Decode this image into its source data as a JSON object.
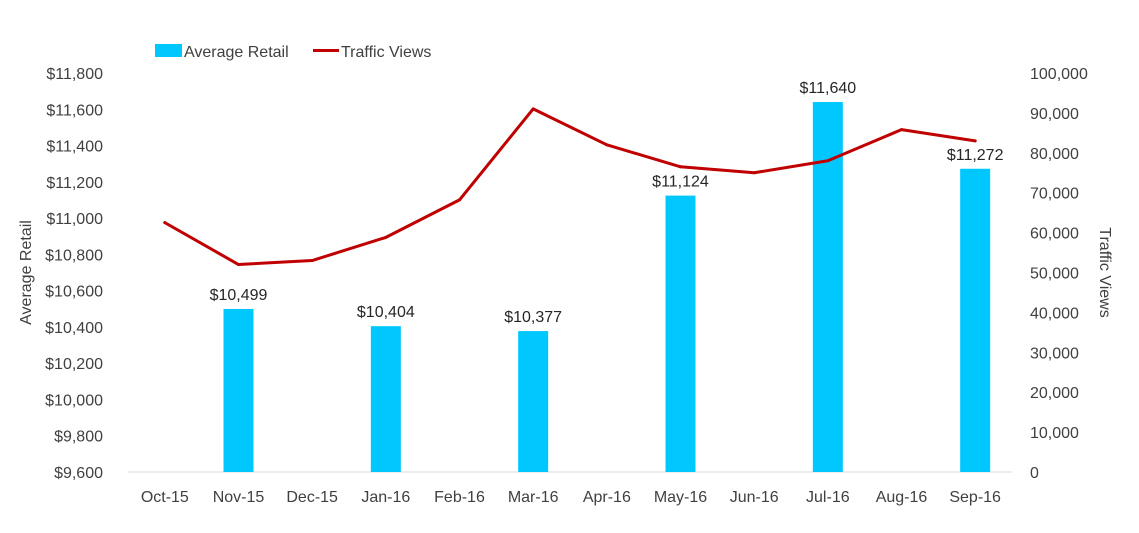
{
  "chart_data": {
    "type": "bar",
    "categories": [
      "Oct-15",
      "Nov-15",
      "Dec-15",
      "Jan-16",
      "Feb-16",
      "Mar-16",
      "Apr-16",
      "May-16",
      "Jun-16",
      "Jul-16",
      "Aug-16",
      "Sep-16"
    ],
    "series": [
      {
        "name": "Average Retail",
        "type": "bar",
        "axis": "left",
        "color": "#00C8FF",
        "values": [
          null,
          10499,
          null,
          10404,
          null,
          10377,
          null,
          11124,
          null,
          11640,
          null,
          11272
        ],
        "data_labels": [
          "",
          "$10,499",
          "",
          "$10,404",
          "",
          "$10,377",
          "",
          "$11,124",
          "",
          "$11,640",
          "",
          "$11,272"
        ]
      },
      {
        "name": "Traffic Views",
        "type": "line",
        "axis": "right",
        "color": "#C00000",
        "values": [
          62500,
          52000,
          53000,
          58800,
          68200,
          91000,
          82000,
          76500,
          75000,
          78000,
          85800,
          83000
        ]
      }
    ],
    "y_left": {
      "label": "Average Retail",
      "ylim": [
        9600,
        11800
      ],
      "ticks": [
        9600,
        9800,
        10000,
        10200,
        10400,
        10600,
        10800,
        11000,
        11200,
        11400,
        11600,
        11800
      ],
      "tick_labels": [
        "$9,600",
        "$9,800",
        "$10,000",
        "$10,200",
        "$10,400",
        "$10,600",
        "$10,800",
        "$11,000",
        "$11,200",
        "$11,400",
        "$11,600",
        "$11,800"
      ]
    },
    "y_right": {
      "label": "Traffic Views",
      "ylim": [
        0,
        100000
      ],
      "ticks": [
        0,
        10000,
        20000,
        30000,
        40000,
        50000,
        60000,
        70000,
        80000,
        90000,
        100000
      ],
      "tick_labels": [
        "0",
        "10,000",
        "20,000",
        "30,000",
        "40,000",
        "50,000",
        "60,000",
        "70,000",
        "80,000",
        "90,000",
        "100,000"
      ]
    },
    "grid": false,
    "legend": "top-left"
  }
}
